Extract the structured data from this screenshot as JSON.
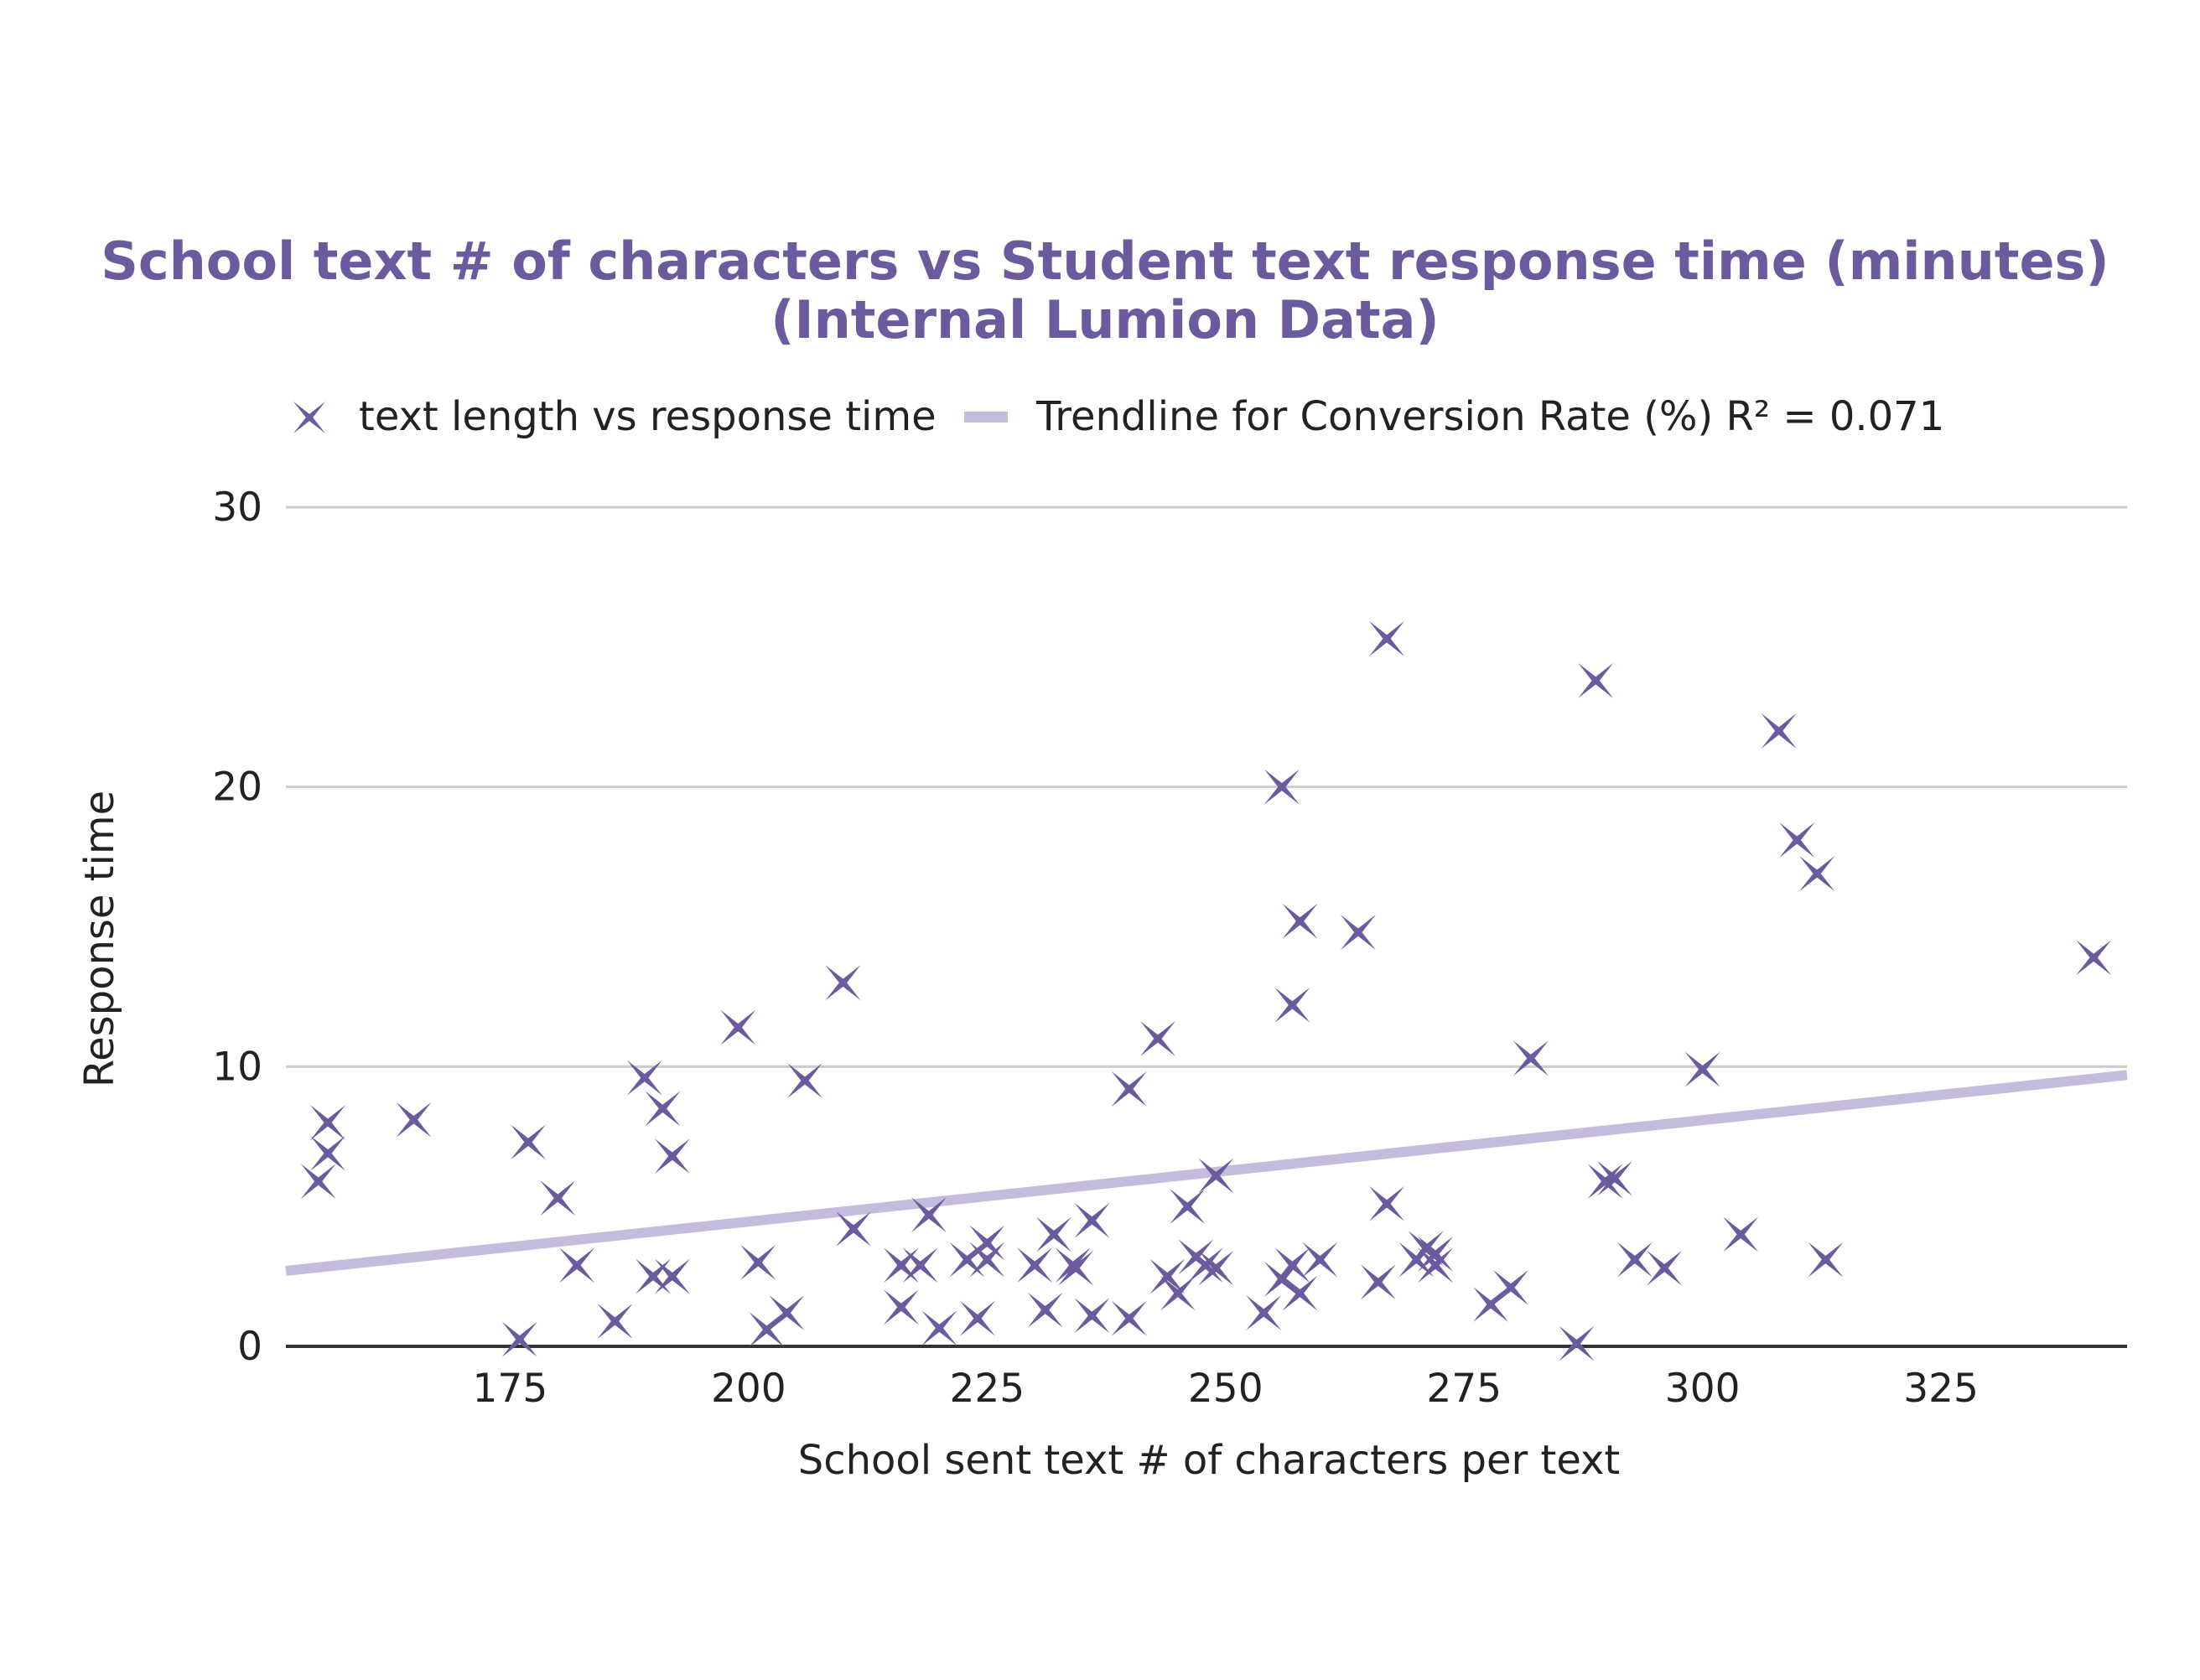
{
  "chart_data": {
    "type": "scatter",
    "title": "School text # of characters vs Student text response time (minutes)",
    "subtitle": "(Internal Lumion Data)",
    "xlabel": "School sent text # of characters per text",
    "ylabel": "Response time",
    "xlim": [
      151.5,
      344.5
    ],
    "ylim": [
      0,
      30
    ],
    "xticks": [
      "175",
      "200",
      "225",
      "250",
      "275",
      "300",
      "325"
    ],
    "yticks": [
      "0",
      "10",
      "20",
      "30"
    ],
    "grid": true,
    "legend_position": "top",
    "colors": {
      "title": "#6b5b9e",
      "points": "#6b5b9e",
      "trendline": "#c5bbdd",
      "grid": "#cccccc"
    },
    "series": [
      {
        "name": "text length vs response time",
        "marker": "x-star",
        "points": [
          [
            154.9,
            5.9
          ],
          [
            155.9,
            6.9
          ],
          [
            155.9,
            8.0
          ],
          [
            164.9,
            8.1
          ],
          [
            176.0,
            0.25
          ],
          [
            176.9,
            7.3
          ],
          [
            180.0,
            5.3
          ],
          [
            182.0,
            2.9
          ],
          [
            186.0,
            0.9
          ],
          [
            189.1,
            9.6
          ],
          [
            190.0,
            2.5
          ],
          [
            191.0,
            8.5
          ],
          [
            192.0,
            2.5
          ],
          [
            192.0,
            6.8
          ],
          [
            198.9,
            11.4
          ],
          [
            201.0,
            3.0
          ],
          [
            201.9,
            0.6
          ],
          [
            204.0,
            1.2
          ],
          [
            205.9,
            9.5
          ],
          [
            209.9,
            13.0
          ],
          [
            211.0,
            4.2
          ],
          [
            216.0,
            2.9
          ],
          [
            216.0,
            1.4
          ],
          [
            218.0,
            2.9
          ],
          [
            218.9,
            4.7
          ],
          [
            220.0,
            0.65
          ],
          [
            222.9,
            3.1
          ],
          [
            224.0,
            1.0
          ],
          [
            225.0,
            3.1
          ],
          [
            225.0,
            3.7
          ],
          [
            230.0,
            2.9
          ],
          [
            231.1,
            1.3
          ],
          [
            232.0,
            4.0
          ],
          [
            234.0,
            2.9
          ],
          [
            234.3,
            2.8
          ],
          [
            236.0,
            4.5
          ],
          [
            236.0,
            1.1
          ],
          [
            239.9,
            9.2
          ],
          [
            239.9,
            1.0
          ],
          [
            242.9,
            11.0
          ],
          [
            243.9,
            2.5
          ],
          [
            245.0,
            1.9
          ],
          [
            246.0,
            5.0
          ],
          [
            246.9,
            3.2
          ],
          [
            247.9,
            2.9
          ],
          [
            249.0,
            2.8
          ],
          [
            249.0,
            6.1
          ],
          [
            254.0,
            1.2
          ],
          [
            255.9,
            20.0
          ],
          [
            255.9,
            2.4
          ],
          [
            257.0,
            2.9
          ],
          [
            257.0,
            12.2
          ],
          [
            257.8,
            15.2
          ],
          [
            257.8,
            1.9
          ],
          [
            259.9,
            3.1
          ],
          [
            263.9,
            14.8
          ],
          [
            266.0,
            2.3
          ],
          [
            266.9,
            25.3
          ],
          [
            266.9,
            5.1
          ],
          [
            270.0,
            3.1
          ],
          [
            271.0,
            3.5
          ],
          [
            272.0,
            2.9
          ],
          [
            272.0,
            3.3
          ],
          [
            277.8,
            1.5
          ],
          [
            279.9,
            2.1
          ],
          [
            282.0,
            10.3
          ],
          [
            286.8,
            0.1
          ],
          [
            288.8,
            23.8
          ],
          [
            289.8,
            5.9
          ],
          [
            290.8,
            6.0
          ],
          [
            292.9,
            3.1
          ],
          [
            296.0,
            2.8
          ],
          [
            300.0,
            9.9
          ],
          [
            304.0,
            4.0
          ],
          [
            308.0,
            22.0
          ],
          [
            309.9,
            18.1
          ],
          [
            312.0,
            16.9
          ],
          [
            312.9,
            3.1
          ],
          [
            341.0,
            13.9
          ]
        ]
      },
      {
        "name": "Trendline for Conversion Rate (%) R² = 0.071",
        "type": "line",
        "points": [
          [
            151.5,
            2.7
          ],
          [
            344.5,
            9.7
          ]
        ]
      }
    ]
  }
}
